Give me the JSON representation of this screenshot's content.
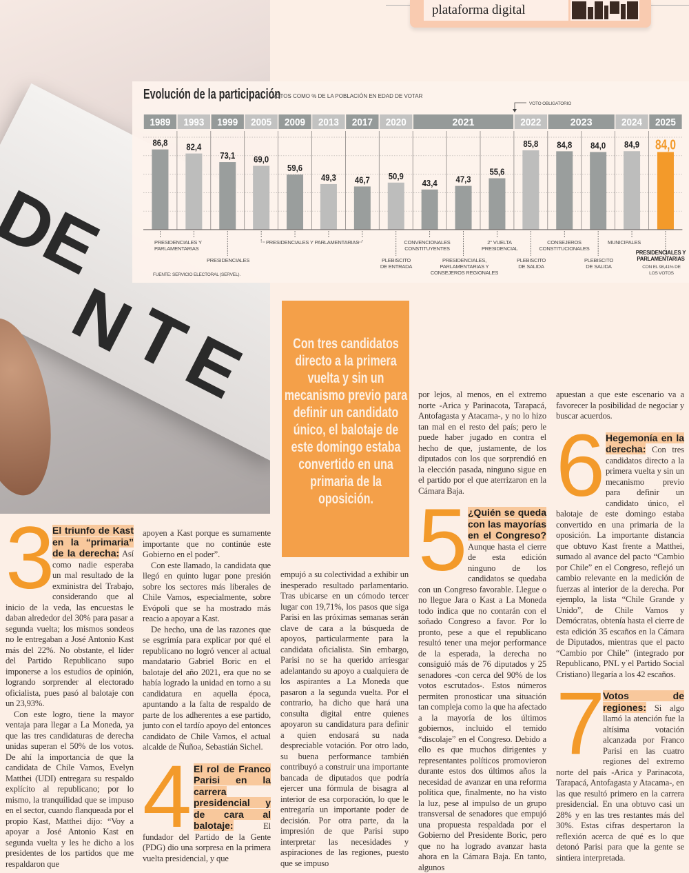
{
  "promo": {
    "text": "plataforma digital",
    "qr_icon": "qr-code-icon"
  },
  "photo": {
    "lettering": "DENTE"
  },
  "chart_data": {
    "type": "bar",
    "title": "Evolución de la participación",
    "subtitle": "VOTOS COMO % DE LA POBLACIÓN EN EDAD DE VOTAR",
    "source": "FUENTE: SERVICIO ELECTORAL (SERVEL).",
    "year_groups": [
      {
        "year": "1989",
        "span": 1
      },
      {
        "year": "1993",
        "span": 1
      },
      {
        "year": "1999",
        "span": 1
      },
      {
        "year": "2005",
        "span": 1
      },
      {
        "year": "2009",
        "span": 1
      },
      {
        "year": "2013",
        "span": 1
      },
      {
        "year": "2017",
        "span": 1
      },
      {
        "year": "2020",
        "span": 1
      },
      {
        "year": "2021",
        "span": 3
      },
      {
        "year": "2022",
        "span": 1
      },
      {
        "year": "2023",
        "span": 2
      },
      {
        "year": "2024",
        "span": 1
      },
      {
        "year": "2025",
        "span": 1
      }
    ],
    "categories": [
      "1989",
      "1993",
      "1999",
      "2005",
      "2009",
      "2013",
      "2017",
      "2020",
      "2021",
      "2021",
      "2021",
      "2022",
      "2023",
      "2023",
      "2024",
      "2025"
    ],
    "values": [
      86.8,
      82.4,
      73.1,
      69.0,
      59.6,
      49.3,
      46.7,
      50.9,
      43.4,
      47.3,
      55.6,
      85.8,
      84.8,
      84.0,
      84.9,
      84.0
    ],
    "value_labels": [
      "86,8",
      "82,4",
      "73,1",
      "69,0",
      "59,6",
      "49,3",
      "46,7",
      "50,9",
      "43,4",
      "47,3",
      "55,6",
      "85,8",
      "84,8",
      "84,0",
      "84,9",
      "84,0"
    ],
    "bar_shades": [
      "dark",
      "light",
      "dark",
      "light",
      "dark",
      "light",
      "dark",
      "light",
      "dark",
      "dark",
      "dark",
      "light",
      "dark",
      "dark",
      "light",
      "highlight"
    ],
    "colors": {
      "dark": "#9a9e9d",
      "light": "#bdbdbc",
      "highlight": "#f39a2a",
      "header_dark": "#959a99",
      "header_light": "#c2c2c1"
    },
    "ylim": [
      0,
      100
    ],
    "grid": true,
    "annotation_marker": "VOTO OBLIGATORIO",
    "annotations": [
      {
        "text": "PRESIDENCIALES Y PARLAMENTARIAS",
        "bars": [
          0,
          1
        ]
      },
      {
        "text": "PRESIDENCIALES",
        "bars": [
          2
        ]
      },
      {
        "text": "PRESIDENCIALES Y PARLAMENTARIAS",
        "bars": [
          3,
          4,
          5,
          6
        ]
      },
      {
        "text": "PLEBISCITO DE ENTRADA",
        "bars": [
          7
        ]
      },
      {
        "text": "CONVENCIONALES CONSTITUYENTES",
        "bars": [
          8
        ]
      },
      {
        "text": "PRESIDENCIALES, PARLAMENTARIAS Y CONSEJEROS REGIONALES",
        "bars": [
          9
        ]
      },
      {
        "text": "2° VUELTA PRESIDENCIAL",
        "bars": [
          10
        ]
      },
      {
        "text": "PLEBISCITO DE SALIDA",
        "bars": [
          11
        ]
      },
      {
        "text": "CONSEJEROS CONSTITUCIONALES",
        "bars": [
          12
        ]
      },
      {
        "text": "PLEBISCITO DE SALIDA",
        "bars": [
          13
        ]
      },
      {
        "text": "MUNICIPALES",
        "bars": [
          14
        ]
      },
      {
        "text": "PRESIDENCIALES Y PARLAMENTARIAS",
        "bars": [
          15
        ],
        "note": "CON EL 98,41% DE LOS VOTOS"
      }
    ]
  },
  "pull_quote": "Con tres candidatos directo a la primera vuelta y sin un mecanismo previo para definir un candidato único, el balotaje de este domingo estaba convertido en una primaria de la oposición.",
  "article": {
    "s3": {
      "number": "3",
      "heading": "El triunfo de Kast en la “primaria” de la derecha:",
      "p1": "Así como nadie esperaba un mal resultado de la exministra del Trabajo, considerando que al inicio de la veda, las encuestas le daban alrededor del 30% para pasar a segunda vuelta; los mismos sondeos no le entregaban a José Antonio Kast más del 22%. No obstante, el líder del Partido Republicano supo imponerse a los estudios de opinión, logrando sorprender al electorado oficialista, pues pasó al balotaje con un 23,93%.",
      "p2": "Con este logro, tiene la mayor ventaja para llegar a La Moneda, ya que las tres candidaturas de derecha unidas superan el 50% de los votos. De ahí la importancia de que la candidata de Chile Vamos, Evelyn Matthei (UDI) entregara su respaldo explícito al republicano; por lo mismo, la tranquilidad que se impuso en el sector, cuando flanqueada por el propio Kast, Matthei dijo: “Voy a apoyar a José Antonio Kast en segunda vuelta y les he dicho a los presidentes de los partidos que me respaldaron que",
      "p3": "apoyen a Kast porque es sumamente importante que no continúe este Gobierno en el poder”.",
      "p4": "Con este llamado, la candidata que llegó en quinto lugar pone presión sobre los sectores más liberales de Chile Vamos, especialmente, sobre Evópoli que se ha mostrado más reacio a apoyar a Kast.",
      "p5": "De hecho, una de las razones que se esgrimía para explicar por qué el republicano no logró vencer al actual mandatario Gabriel Boric en el balotaje del año 2021, era que no se había logrado la unidad en torno a su candidatura en aquella época, apuntando a la falta de respaldo de parte de los adherentes a ese partido, junto con el tardío apoyo del entonces candidato de Chile Vamos, el actual alcalde de Ñuñoa, Sebastián Sichel."
    },
    "s4": {
      "number": "4",
      "heading": "El rol de Franco Parisi en la carrera presidencial y de cara al balotaje:",
      "p1": "El fundador del Partido de la Gente (PDG) dio una sorpresa en la primera vuelta presidencial, y que",
      "p2": "empujó a su colectividad a exhibir un inesperado resultado parlamentario. Tras ubicarse en un cómodo tercer lugar con 19,71%, los pasos que siga Parisi en las próximas semanas serán clave de cara a la búsqueda de apoyos, particularmente para la candidata oficialista. Sin embargo, Parisi no se ha querido arriesgar adelantando su apoyo a cualquiera de los aspirantes a La Moneda que pasaron a la segunda vuelta. Por el contrario, ha dicho que hará una consulta digital entre quienes apoyaron su candidatura para definir a quien endosará su nada despreciable votación. Por otro lado, su buena performance también contribuyó a construir una importante bancada de diputados que podría ejercer una fórmula de bisagra al interior de esa corporación, lo que le entregaría un importante poder de decisión. Por otra parte, da la impresión de que Parisi supo interpretar las necesidades y aspiraciones de las regiones, puesto que se impuso",
      "p3": "por lejos, al menos, en el extremo norte -Arica y Parinacota, Tarapacá, Antofagasta y Atacama-, y no lo hizo tan mal en el resto del país; pero le puede haber jugado en contra el hecho de que, justamente, de los diputados con los que sorprendió en la elección pasada, ninguno sigue en el partido por el que aterrizaron en la Cámara Baja."
    },
    "s5": {
      "number": "5",
      "heading": "¿Quién se queda con las mayorías en el Congreso?",
      "p1": "Aunque hasta el cierre de esta edición ninguno de los candidatos se quedaba con un Congreso favorable. Llegue o no llegue Jara o Kast a La Moneda todo indica que no contarán con el soñado Congreso a favor. Por lo pronto, pese a que el republicano resultó tener una mejor performance de la esperada, la derecha no consiguió más de 76 diputados y 25 senadores -con cerca del 90% de los votos escrutados-. Estos números permiten pronosticar una situación tan compleja como la que ha afectado a la mayoría de los últimos gobiernos, incluido el temido “discolaje” en el Congreso. Debido a ello es que muchos dirigentes y representantes políticos promovieron durante estos dos últimos años la necesidad de avanzar en una reforma política que, finalmente, no ha visto la luz, pese al impulso de un grupo transversal de senadores que empujó una propuesta respaldada por el Gobierno del Presidente Boric, pero que no ha logrado avanzar hasta ahora en la Cámara Baja. En tanto, algunos",
      "p2": "apuestan a que este escenario va a favorecer la posibilidad de negociar y buscar acuerdos."
    },
    "s6": {
      "number": "6",
      "heading": "Hegemonía en la derecha:",
      "p1": "Con tres candidatos directo a la primera vuelta y sin un mecanismo previo para definir un candidato único, el balotaje de este domingo estaba convertido en una primaria de la oposición. La importante distancia que obtuvo Kast frente a Matthei, sumado al avance del pacto “Cambio por Chile” en el Congreso, reflejó un cambio relevante en la medición de fuerzas al interior de la derecha. Por ejemplo, la lista “Chile Grande y Unido”, de Chile Vamos y Demócratas, obtenía hasta el cierre de esta edición 35 escaños en la Cámara de Diputados, mientras que el pacto “Cambio por Chile” (integrado por Republicano, PNL y el Partido Social Cristiano) llegaría a los 42 escaños."
    },
    "s7": {
      "number": "7",
      "heading": "Votos de regiones:",
      "p1": "Si algo llamó la atención fue la altísima votación alcanzada por Franco Parisi en las cuatro regiones del extremo norte del país -Arica y Parinacota, Tarapacá, Antofagasta y Atacama-, en las que resultó primero en la carrera presidencial. En una obtuvo casi un 28% y en las tres restantes más del 30%. Estas cifras despertaron la reflexión acerca de qué es lo que detonó Parisi para que la gente se sintiera interpretada."
    }
  }
}
